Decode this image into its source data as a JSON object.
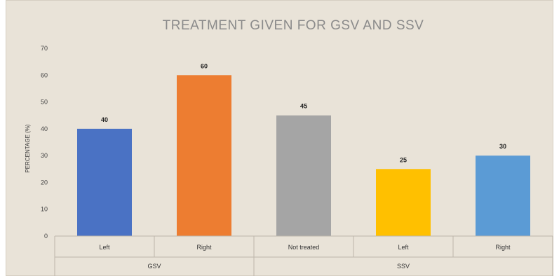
{
  "chart_data": {
    "type": "bar",
    "title": "TREATMENT GIVEN FOR GSV AND SSV",
    "ylabel": "PERCENTAGE (%)",
    "xlabel": "",
    "ylim": [
      0,
      70
    ],
    "yticks": [
      0,
      10,
      20,
      30,
      40,
      50,
      60,
      70
    ],
    "grid": false,
    "categories": [
      "Left",
      "Right",
      "Not treated",
      "Left",
      "Right"
    ],
    "groups": [
      {
        "label": "GSV",
        "span": [
          0,
          1
        ]
      },
      {
        "label": "SSV",
        "span": [
          2,
          4
        ]
      }
    ],
    "values": [
      40,
      60,
      45,
      25,
      30
    ],
    "colors": [
      "#4a72c4",
      "#ed7d31",
      "#a5a5a5",
      "#ffc000",
      "#5b9bd5"
    ],
    "data_labels": [
      "40",
      "60",
      "45",
      "25",
      "30"
    ]
  }
}
